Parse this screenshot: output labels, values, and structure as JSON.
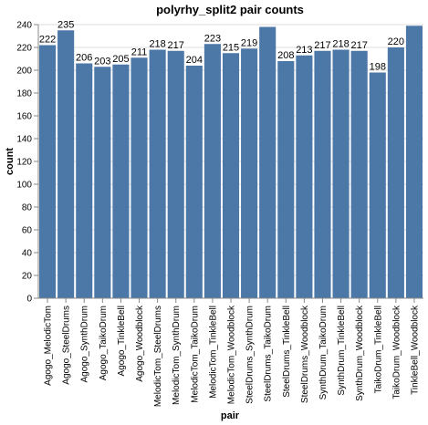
{
  "chart_data": {
    "type": "bar",
    "title": "polyrhy_split2 pair counts",
    "xlabel": "pair",
    "ylabel": "count",
    "ylim": [
      0,
      240
    ],
    "yticks": [
      0,
      20,
      40,
      60,
      80,
      100,
      120,
      140,
      160,
      180,
      200,
      220,
      240
    ],
    "grid": true,
    "bar_color": "#4c78a8",
    "categories": [
      "Agogo_MelodicTom",
      "Agogo_SteelDrums",
      "Agogo_SynthDrum",
      "Agogo_TaikoDrum",
      "Agogo_TinkleBell",
      "Agogo_Woodblock",
      "MelodicTom_SteelDrums",
      "MelodicTom_SynthDrum",
      "MelodicTom_TaikoDrum",
      "MelodicTom_TinkleBell",
      "MelodicTom_Woodblock",
      "SteelDrums_SynthDrum",
      "SteelDrums_TaikoDrum",
      "SteelDrums_TinkleBell",
      "SteelDrums_Woodblock",
      "SynthDrum_TaikoDrum",
      "SynthDrum_TinkleBell",
      "SynthDrum_Woodblock",
      "TaikoDrum_TinkleBell",
      "TaikoDrum_Woodblock",
      "TinkleBell_Woodblock"
    ],
    "values": [
      222,
      235,
      206,
      203,
      205,
      211,
      218,
      217,
      204,
      223,
      215,
      219,
      238,
      208,
      213,
      217,
      218,
      217,
      198,
      220,
      239
    ],
    "data_labels": [
      "222",
      "235",
      "206",
      "203",
      "205",
      "211",
      "218",
      "217",
      "204",
      "223",
      "215",
      "219",
      "",
      "208",
      "213",
      "217",
      "218",
      "217",
      "198",
      "220",
      ""
    ]
  }
}
